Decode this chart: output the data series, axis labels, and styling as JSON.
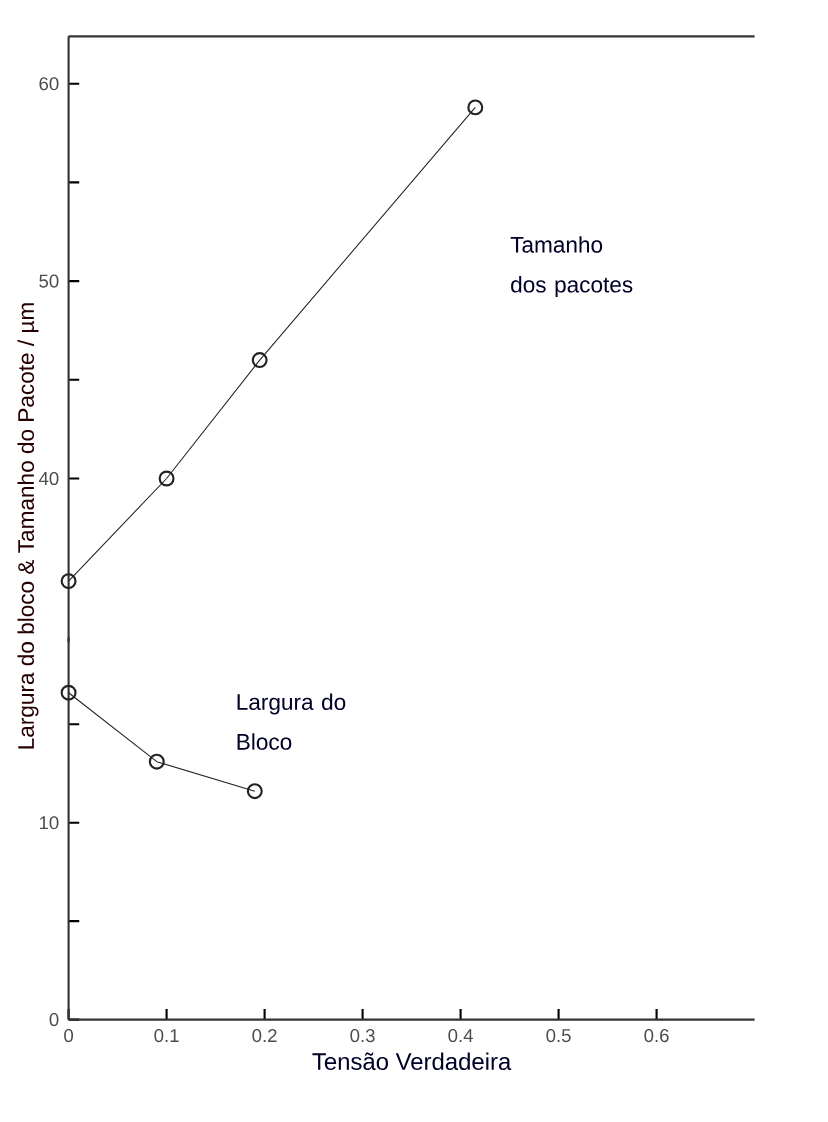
{
  "chart_data": [
    {
      "type": "line",
      "xlim": [
        0,
        0.7
      ],
      "ylim": [
        31.7,
        62.4
      ],
      "yticks": [
        40,
        {
          "value": 45,
          "label": null
        },
        50,
        {
          "value": 55,
          "label": null
        },
        60
      ],
      "tick_labels": "y",
      "marker": "circle",
      "line_style": "solid",
      "series": [
        {
          "name": "Tamanho dos pacotes",
          "color": "#222222",
          "x": [
            0,
            0.1,
            0.195,
            0.415
          ],
          "values": [
            34.8,
            40,
            46,
            58.8
          ]
        }
      ]
    },
    {
      "type": "line",
      "xlim": [
        0,
        0.7
      ],
      "ylim": [
        0,
        19.4
      ],
      "xticks": [
        0,
        0.1,
        0.2,
        0.3,
        0.4,
        0.5,
        0.6
      ],
      "yticks": [
        0,
        {
          "value": 5,
          "label": null
        },
        10,
        {
          "value": 15,
          "label": null
        }
      ],
      "marker": "circle",
      "line_style": "solid",
      "xlabel": "Tensão Verdadeira",
      "ylabel": "Largura do bloco & Tamanho do Pacote / µm",
      "series": [
        {
          "name": "Largura do Bloco",
          "color": "#222222",
          "x": [
            0,
            0.09,
            0.19
          ],
          "values": [
            16.6,
            13.1,
            11.6
          ]
        }
      ]
    }
  ]
}
